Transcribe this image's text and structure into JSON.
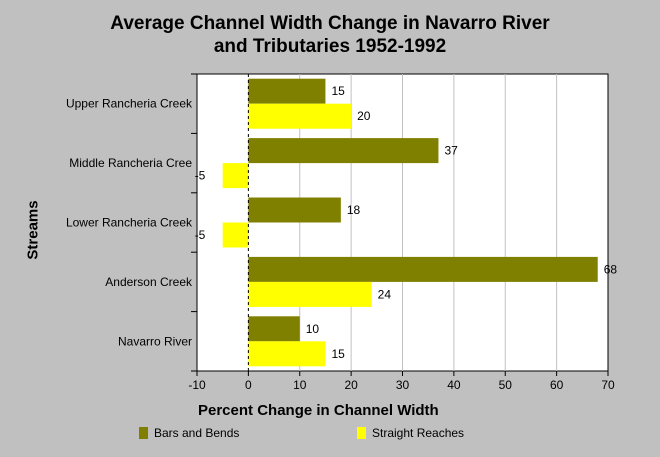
{
  "title_line1": "Average Channel Width Change in Navarro River",
  "title_line2": "and Tributaries 1952-1992",
  "chart_data": {
    "type": "bar",
    "orientation": "horizontal",
    "title": "Average Channel Width Change in Navarro River and Tributaries 1952-1992",
    "xlabel": "Percent Change in Channel Width",
    "ylabel": "Streams",
    "categories": [
      "Upper Rancheria Creek",
      "Middle Rancheria Cree",
      "Lower Rancheria Creek",
      "Anderson Creek",
      "Navarro River"
    ],
    "series": [
      {
        "name": "Bars and Bends",
        "values": [
          15,
          37,
          18,
          68,
          10
        ],
        "color": "#808000"
      },
      {
        "name": "Straight Reaches",
        "values": [
          20,
          -5,
          -5,
          24,
          15
        ],
        "color": "#ffff00"
      }
    ],
    "xlim": [
      -10,
      70
    ],
    "xticks": [
      "-10",
      "0",
      "10",
      "20",
      "30",
      "40",
      "50",
      "60",
      "70"
    ],
    "grid": true,
    "legend_position": "bottom"
  }
}
